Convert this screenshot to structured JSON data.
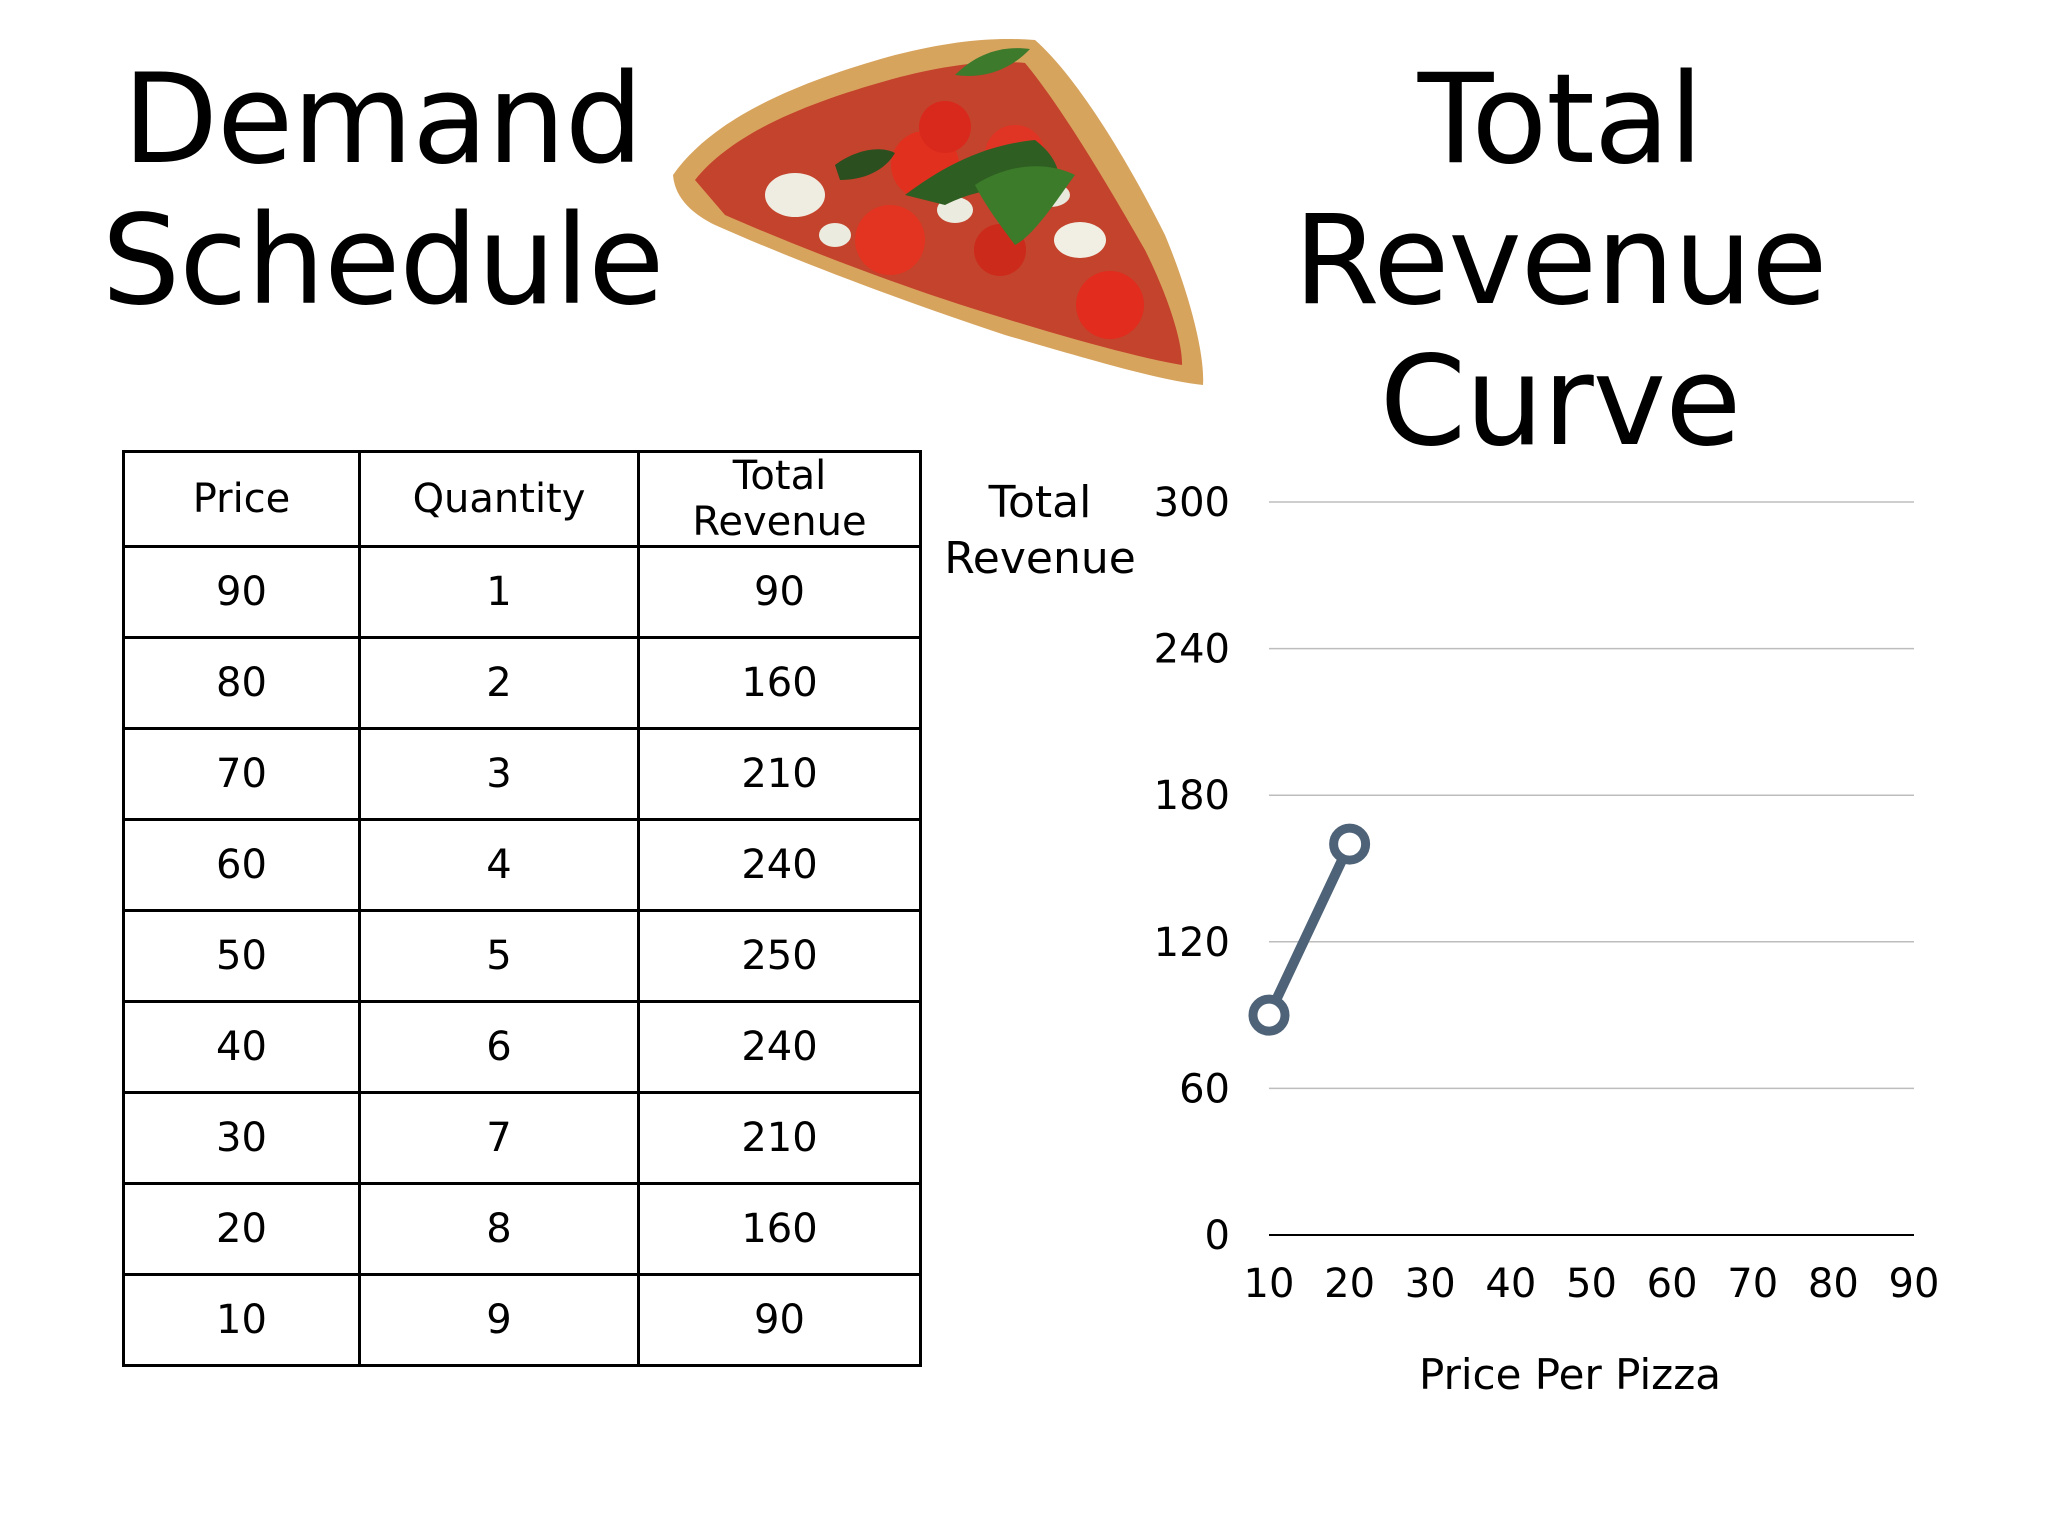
{
  "titles": {
    "left_line1": "Demand",
    "left_line2": "Schedule",
    "right_line1": "Total Revenue",
    "right_line2": "Curve"
  },
  "table": {
    "headers": [
      "Price",
      "Quantity",
      "Total Revenue"
    ],
    "rows": [
      [
        "90",
        "1",
        "90"
      ],
      [
        "80",
        "2",
        "160"
      ],
      [
        "70",
        "3",
        "210"
      ],
      [
        "60",
        "4",
        "240"
      ],
      [
        "50",
        "5",
        "250"
      ],
      [
        "40",
        "6",
        "240"
      ],
      [
        "30",
        "7",
        "210"
      ],
      [
        "20",
        "8",
        "160"
      ],
      [
        "10",
        "9",
        "90"
      ]
    ]
  },
  "chart_data": {
    "type": "line",
    "ylabel_line1": "Total",
    "ylabel_line2": "Revenue",
    "xlabel": "Price Per Pizza",
    "categories": [
      "10",
      "20",
      "30",
      "40",
      "50",
      "60",
      "70",
      "80",
      "90"
    ],
    "yticks": [
      "0",
      "60",
      "120",
      "180",
      "240",
      "300"
    ],
    "ylim": [
      0,
      300
    ],
    "grid": true,
    "series": [
      {
        "points": [
          {
            "x": 10,
            "y": 90
          },
          {
            "x": 20,
            "y": 160
          }
        ]
      }
    ],
    "colors": {
      "line": "#4f6378",
      "grid": "#bdbdbd",
      "axis": "#000000"
    }
  },
  "image": {
    "icon": "pizza-slice-image"
  }
}
